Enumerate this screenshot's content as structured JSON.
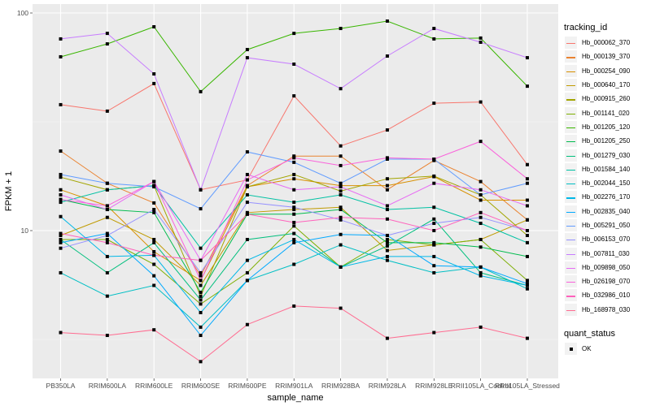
{
  "chart_data": {
    "type": "line",
    "title": "",
    "xlabel": "sample_name",
    "ylabel": "FPKM + 1",
    "y_scale": "log10",
    "ylim": [
      2.2,
      105
    ],
    "y_ticks": [
      {
        "value": 10,
        "label": "10"
      },
      {
        "value": 100,
        "label": "100"
      }
    ],
    "grid": true,
    "categories": [
      "PB350LA",
      "RRIM600LA",
      "RRIM600LE",
      "RRIM600SE",
      "RRIM600PE",
      "RRIM901LA",
      "RRIM928BA",
      "RRIM928LA",
      "RRIM928LE",
      "RRII105LA_Control",
      "RRII105LA_Stressed"
    ],
    "legend_position": "right",
    "legend_title": "tracking_id",
    "series": [
      {
        "name": "Hb_000062_370",
        "color": "#F8766D",
        "values": [
          37.9,
          35.4,
          47.4,
          15.4,
          17.1,
          41.6,
          24.5,
          29.0,
          38.5,
          39.0,
          20.1
        ]
      },
      {
        "name": "Hb_000139_370",
        "color": "#EA8331",
        "values": [
          23.2,
          16.5,
          13.4,
          6.2,
          16.1,
          22.0,
          22.0,
          15.4,
          21.0,
          16.8,
          11.2
        ]
      },
      {
        "name": "Hb_000254_090",
        "color": "#D89000",
        "values": [
          15.4,
          13.0,
          8.0,
          5.9,
          15.9,
          17.3,
          16.1,
          16.1,
          17.7,
          13.8,
          13.8
        ]
      },
      {
        "name": "Hb_000640_170",
        "color": "#C09B00",
        "values": [
          9.5,
          11.5,
          9.1,
          5.6,
          12.1,
          12.5,
          12.8,
          8.1,
          8.6,
          9.1,
          11.2
        ]
      },
      {
        "name": "Hb_000915_260",
        "color": "#A3A500",
        "values": [
          17.6,
          15.4,
          16.1,
          4.99,
          15.9,
          18.1,
          15.2,
          17.3,
          17.8,
          14.6,
          9.5
        ]
      },
      {
        "name": "Hb_001141_020",
        "color": "#7CAE00",
        "values": [
          9.1,
          9.1,
          7.0,
          4.6,
          6.4,
          10.5,
          6.8,
          9.1,
          8.6,
          9.1,
          5.9
        ]
      },
      {
        "name": "Hb_001205_120",
        "color": "#39B600",
        "values": [
          62.9,
          72.1,
          86.4,
          43.5,
          67.9,
          80.6,
          84.9,
          91.8,
          76.0,
          76.7,
          46.1
        ]
      },
      {
        "name": "Hb_001205_250",
        "color": "#00BB4E",
        "values": [
          13.9,
          12.5,
          12.1,
          5.2,
          11.9,
          11.9,
          12.5,
          8.8,
          8.8,
          8.4,
          7.6
        ]
      },
      {
        "name": "Hb_001279_030",
        "color": "#00BF7D",
        "values": [
          9.1,
          6.4,
          8.8,
          4.8,
          9.1,
          9.7,
          6.8,
          8.5,
          11.3,
          6.4,
          5.6
        ]
      },
      {
        "name": "Hb_001584_140",
        "color": "#00C1A3",
        "values": [
          13.5,
          15.4,
          16.1,
          8.3,
          14.6,
          13.5,
          14.6,
          12.5,
          12.8,
          10.8,
          8.8
        ]
      },
      {
        "name": "Hb_002044_150",
        "color": "#00BFC4",
        "values": [
          6.4,
          5.0,
          5.6,
          3.6,
          5.9,
          7.0,
          8.6,
          7.3,
          6.4,
          6.8,
          5.4
        ]
      },
      {
        "name": "Hb_002276_170",
        "color": "#00B8E7",
        "values": [
          11.6,
          7.6,
          7.7,
          4.2,
          7.3,
          9.1,
          6.8,
          7.6,
          7.6,
          6.2,
          5.6
        ]
      },
      {
        "name": "Hb_002835_040",
        "color": "#00A9FF",
        "values": [
          8.8,
          9.7,
          6.2,
          3.3,
          5.9,
          8.8,
          9.6,
          9.5,
          6.9,
          6.8,
          5.7
        ]
      },
      {
        "name": "Hb_005291_050",
        "color": "#619CFF",
        "values": [
          18.1,
          16.5,
          15.9,
          12.6,
          23.0,
          20.6,
          16.5,
          21.3,
          21.3,
          14.6,
          16.5
        ]
      },
      {
        "name": "Hb_006153_070",
        "color": "#9590FF",
        "values": [
          8.3,
          9.5,
          12.5,
          6.4,
          13.5,
          12.8,
          11.2,
          9.5,
          10.8,
          11.5,
          10.0
        ]
      },
      {
        "name": "Hb_007811_030",
        "color": "#C77CFF",
        "values": [
          76.0,
          80.6,
          52.5,
          15.4,
          62.3,
          58.2,
          44.9,
          63.4,
          84.9,
          73.4,
          62.3
        ]
      },
      {
        "name": "Hb_009898_050",
        "color": "#E76BF3",
        "values": [
          14.6,
          12.5,
          16.8,
          7.3,
          18.1,
          15.4,
          15.9,
          13.0,
          16.5,
          15.4,
          13.0
        ]
      },
      {
        "name": "Hb_026198_070",
        "color": "#FA62DB",
        "values": [
          13.9,
          13.0,
          16.8,
          5.9,
          17.1,
          21.6,
          19.9,
          21.6,
          21.3,
          25.7,
          17.3
        ]
      },
      {
        "name": "Hb_032986_010",
        "color": "#FF62BC",
        "values": [
          9.7,
          8.8,
          7.7,
          7.3,
          11.9,
          10.9,
          11.5,
          11.3,
          10.0,
          12.1,
          10.0
        ]
      },
      {
        "name": "Hb_168978_030",
        "color": "#FF6C91",
        "values": [
          3.4,
          3.3,
          3.5,
          2.5,
          3.7,
          4.5,
          4.4,
          3.2,
          3.4,
          3.6,
          3.2
        ]
      }
    ],
    "shape_legend": {
      "title": "quant_status",
      "entries": [
        "OK"
      ]
    }
  }
}
